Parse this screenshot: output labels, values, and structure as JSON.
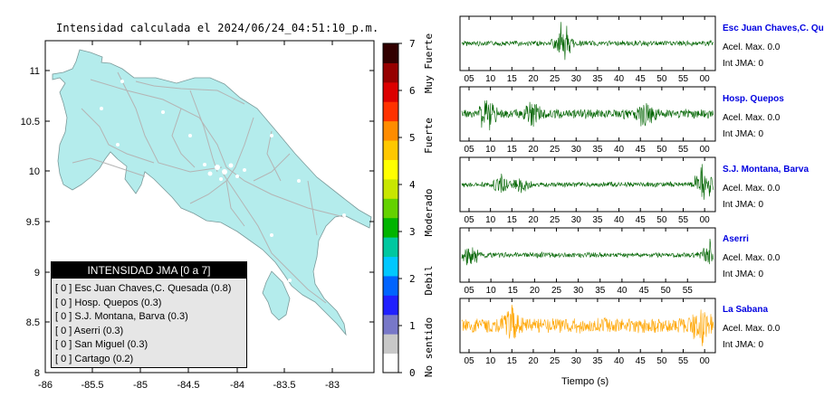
{
  "title": "Intensidad calculada el 2024/06/24_04:51:10_p.m.",
  "colorbar": {
    "ticks": [
      "0",
      "1",
      "2",
      "3",
      "4",
      "5",
      "6",
      "7"
    ],
    "categories": [
      "No sentido",
      "Debil",
      "Moderado",
      "Fuerte",
      "Muy Fuerte"
    ],
    "colors": [
      "#ffffff",
      "#c8c8c8",
      "#7878c8",
      "#2020ff",
      "#0064ff",
      "#00c8ff",
      "#00c8a0",
      "#00b400",
      "#64d200",
      "#c8e600",
      "#ffff00",
      "#ffc800",
      "#ff8c00",
      "#ff3200",
      "#dc0000",
      "#960000",
      "#320000"
    ]
  },
  "map": {
    "x_ticks": [
      "-86",
      "-85.5",
      "-85",
      "-84.5",
      "-84",
      "-83.5",
      "-83"
    ],
    "y_ticks": [
      "8",
      "8.5",
      "9",
      "9.5",
      "10",
      "10.5",
      "11"
    ],
    "land_color": "#b4ecec",
    "road_color": "#b4b4b4"
  },
  "legend": {
    "header": "INTENSIDAD JMA [0 a 7]",
    "rows": [
      "[ 0 ]  Esc Juan Chaves,C. Quesada (0.8)",
      "[ 0 ]  Hosp. Quepos (0.3)",
      "[ 0 ]  S.J. Montana, Barva (0.3)",
      "[ 0 ]  Aserri (0.3)",
      "[ 0 ]  San Miguel (0.3)",
      "[ 0 ]  Cartago (0.2)"
    ]
  },
  "chart_data": [
    {
      "type": "line",
      "title": "Esc Juan Chaves,C. Qu",
      "accel": "Acel. Max. 0.0",
      "jma": "Int JMA: 0",
      "color": "#006400",
      "tick_labels": [
        "05",
        "10",
        "15",
        "20",
        "25",
        "30",
        "35",
        "40",
        "45",
        "50",
        "55",
        "00"
      ],
      "bursts": [
        {
          "at": 0.4,
          "amp": 0.85
        }
      ]
    },
    {
      "type": "line",
      "title": "Hosp. Quepos",
      "accel": "Acel. Max. 0.0",
      "jma": "Int JMA: 0",
      "color": "#006400",
      "tick_labels": [
        "05",
        "10",
        "15",
        "20",
        "25",
        "30",
        "35",
        "40",
        "45",
        "50",
        "55",
        "00"
      ],
      "bursts": [
        {
          "at": 0.1,
          "amp": 0.7
        },
        {
          "at": 0.28,
          "amp": 0.5
        },
        {
          "at": 0.73,
          "amp": 0.6
        }
      ]
    },
    {
      "type": "line",
      "title": "S.J. Montana, Barva",
      "accel": "Acel. Max. 0.0",
      "jma": "Int JMA: 0",
      "color": "#006400",
      "tick_labels": [
        "05",
        "10",
        "15",
        "20",
        "25",
        "30",
        "35",
        "40",
        "45",
        "50",
        "55",
        "00"
      ],
      "bursts": [
        {
          "at": 0.16,
          "amp": 0.4
        },
        {
          "at": 0.24,
          "amp": 0.3
        },
        {
          "at": 0.96,
          "amp": 0.95
        }
      ]
    },
    {
      "type": "line",
      "title": "Aserri",
      "accel": "Acel. Max. 0.0",
      "jma": "Int JMA: 0",
      "color": "#006400",
      "tick_labels": [
        "05",
        "10",
        "15",
        "20",
        "25",
        "30",
        "35",
        "40",
        "45",
        "50",
        "55"
      ],
      "bursts": [
        {
          "at": 0.03,
          "amp": 0.55
        },
        {
          "at": 0.99,
          "amp": 0.6
        }
      ]
    },
    {
      "type": "line",
      "title": "La Sabana",
      "accel": "Acel. Max. 0.0",
      "jma": "Int JMA: 0",
      "color": "#ffa500",
      "tick_labels": [
        "05",
        "10",
        "15",
        "20",
        "25",
        "30",
        "35",
        "40",
        "45",
        "50",
        "55",
        "00"
      ],
      "bursts": [
        {
          "at": 0.2,
          "amp": 0.6
        },
        {
          "at": 0.95,
          "amp": 0.7
        }
      ]
    }
  ],
  "xlabel": "Tiempo (s)"
}
